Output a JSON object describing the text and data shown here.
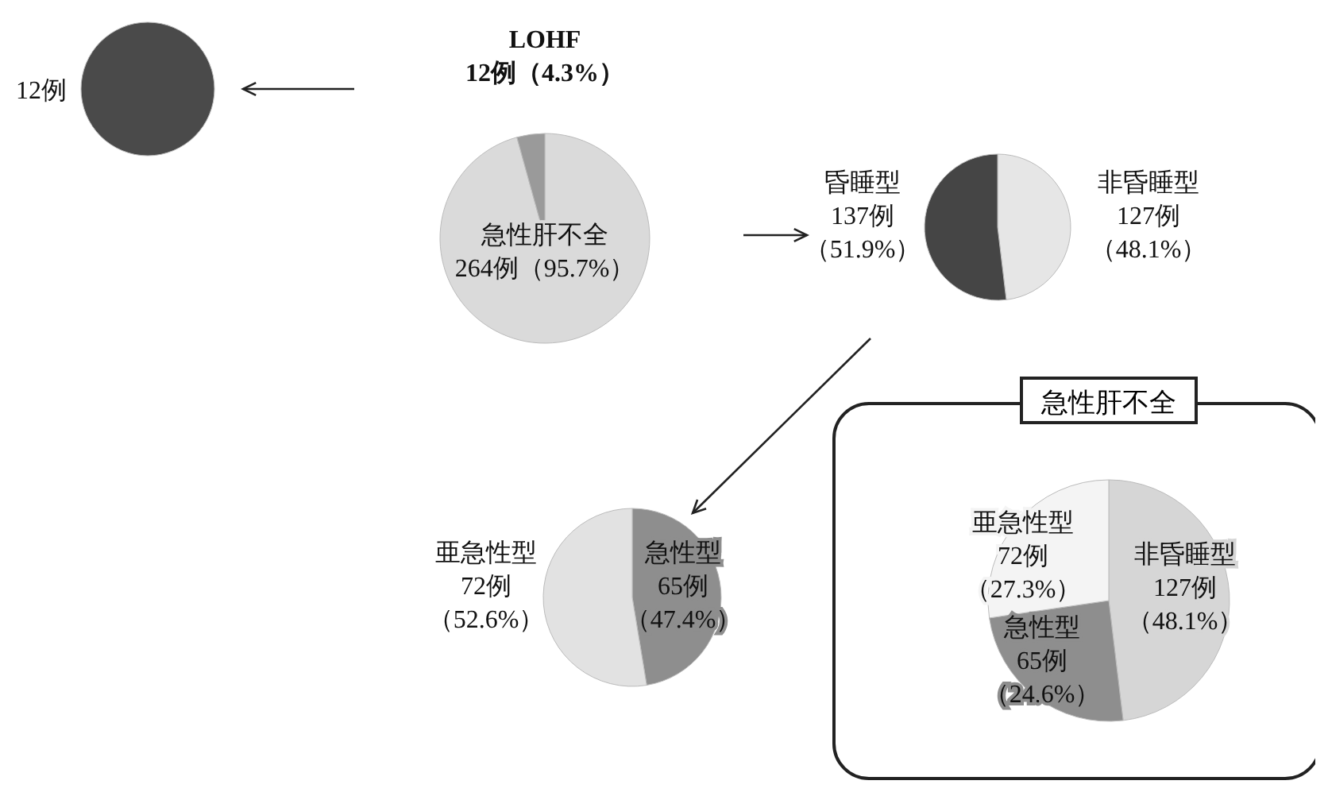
{
  "chart_data": [
    {
      "type": "pie",
      "categories": [
        null
      ],
      "values": [
        12
      ],
      "colors": [
        "#4a4a4a"
      ],
      "value_labels": [
        "12例"
      ]
    },
    {
      "type": "pie",
      "categories": [
        "急性肝不全",
        "LOHF"
      ],
      "values": [
        95.7,
        4.3
      ],
      "colors": [
        "#dadada",
        "#9a9a9a"
      ],
      "value_labels": [
        "264例（95.7%）",
        "12例（4.3%）"
      ]
    },
    {
      "type": "pie",
      "categories": [
        "非昏睡型",
        "昏睡型"
      ],
      "values": [
        48.1,
        51.9
      ],
      "colors": [
        "#e6e6e6",
        "#454545"
      ],
      "value_labels": [
        "127例（48.1%）",
        "137例（51.9%）"
      ]
    },
    {
      "type": "pie",
      "categories": [
        "急性型",
        "亜急性型"
      ],
      "values": [
        47.4,
        52.6
      ],
      "colors": [
        "#8e8e8e",
        "#e2e2e2"
      ],
      "value_labels": [
        "65例（47.4%）",
        "72例（52.6%）"
      ]
    },
    {
      "type": "pie",
      "title": "急性肝不全",
      "categories": [
        "非昏睡型",
        "急性型",
        "亜急性型"
      ],
      "values": [
        48.1,
        24.6,
        27.3
      ],
      "colors": [
        "#d6d6d6",
        "#8e8e8e",
        "#f4f4f4"
      ],
      "value_labels": [
        "127例（48.1%）",
        "65例（24.6%）",
        "72例（27.3%）"
      ]
    }
  ]
}
